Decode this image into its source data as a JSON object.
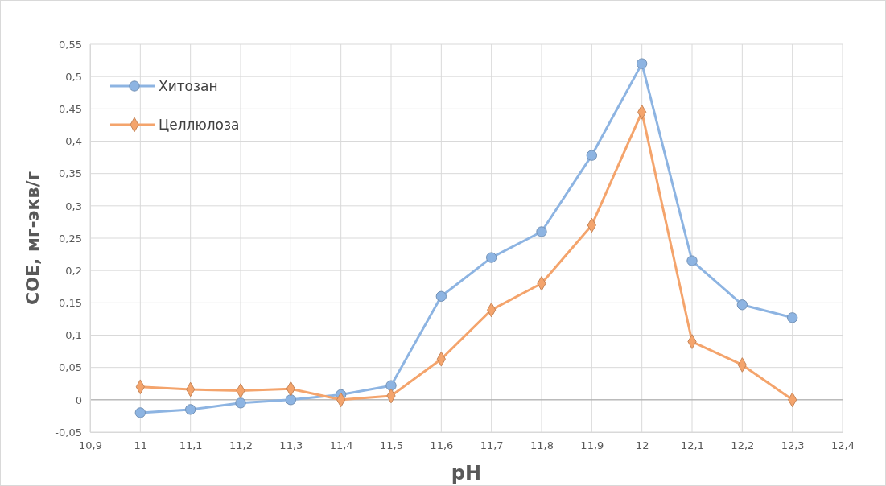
{
  "chart_data": {
    "type": "line",
    "xlabel": "pH",
    "ylabel": "СОЕ, мг-экв/г",
    "x": [
      11,
      11.1,
      11.2,
      11.3,
      11.4,
      11.5,
      11.6,
      11.7,
      11.8,
      11.9,
      12,
      12.1,
      12.2,
      12.3
    ],
    "series": [
      {
        "name": "Хитозан",
        "color": "#8db4e2",
        "marker": "circle",
        "values": [
          -0.02,
          -0.015,
          -0.005,
          0,
          0.008,
          0.022,
          0.16,
          0.22,
          0.26,
          0.378,
          0.52,
          0.215,
          0.147,
          0.127
        ]
      },
      {
        "name": "Целлюлоза",
        "color": "#f4a46c",
        "marker": "diamond",
        "values": [
          0.02,
          0.016,
          0.014,
          0.017,
          0,
          0.006,
          0.063,
          0.139,
          0.18,
          0.27,
          0.445,
          0.09,
          0.054,
          0
        ]
      }
    ],
    "xlim": [
      10.9,
      12.4
    ],
    "xticks": [
      {
        "value": 10.9,
        "label": "10,9"
      },
      {
        "value": 11,
        "label": "11"
      },
      {
        "value": 11.1,
        "label": "11,1"
      },
      {
        "value": 11.2,
        "label": "11,2"
      },
      {
        "value": 11.3,
        "label": "11,3"
      },
      {
        "value": 11.4,
        "label": "11,4"
      },
      {
        "value": 11.5,
        "label": "11,5"
      },
      {
        "value": 11.6,
        "label": "11,6"
      },
      {
        "value": 11.7,
        "label": "11,7"
      },
      {
        "value": 11.8,
        "label": "11,8"
      },
      {
        "value": 11.9,
        "label": "11,9"
      },
      {
        "value": 12,
        "label": "12"
      },
      {
        "value": 12.1,
        "label": "12,1"
      },
      {
        "value": 12.2,
        "label": "12,2"
      },
      {
        "value": 12.3,
        "label": "12,3"
      },
      {
        "value": 12.4,
        "label": "12,4"
      }
    ],
    "ylim": [
      -0.05,
      0.55
    ],
    "yticks": [
      {
        "value": -0.05,
        "label": "-0,05"
      },
      0,
      {
        "value": 0.05,
        "label": "0,05"
      },
      {
        "value": 0.1,
        "label": "0,1"
      },
      {
        "value": 0.15,
        "label": "0,15"
      },
      {
        "value": 0.2,
        "label": "0,2"
      },
      {
        "value": 0.25,
        "label": "0,25"
      },
      {
        "value": 0.3,
        "label": "0,3"
      },
      {
        "value": 0.35,
        "label": "0,35"
      },
      {
        "value": 0.4,
        "label": "0,4"
      },
      {
        "value": 0.45,
        "label": "0,45"
      },
      {
        "value": 0.5,
        "label": "0,5"
      },
      {
        "value": 0.55,
        "label": "0,55"
      }
    ],
    "grid": true,
    "legend": "top left",
    "line_style": "solid"
  }
}
